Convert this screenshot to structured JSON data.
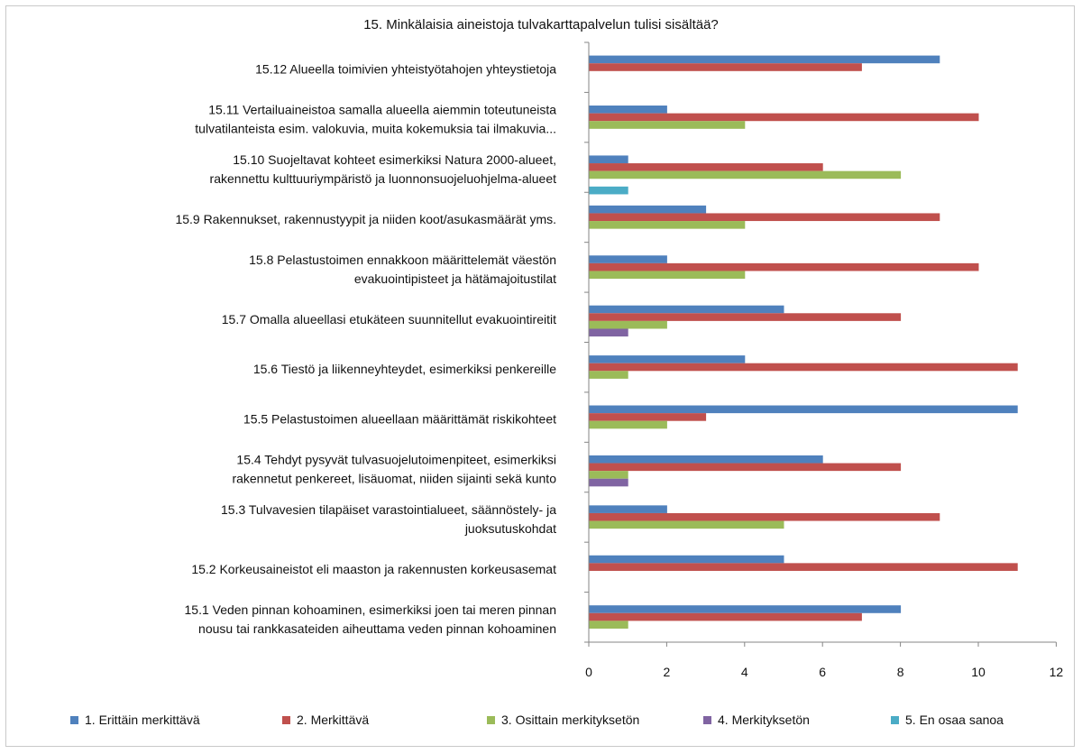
{
  "chart_data": {
    "type": "bar",
    "orientation": "horizontal",
    "title": "15. Minkälaisia aineistoja tulvakarttapalvelun tulisi sisältää?",
    "xlim": [
      0,
      12
    ],
    "x_ticks": [
      "0",
      "2",
      "4",
      "6",
      "8",
      "10",
      "12"
    ],
    "grid": false,
    "legend_position": "bottom",
    "categories": [
      [
        "15.12 Alueella toimivien yhteistyötahojen yhteystietoja"
      ],
      [
        "15.11 Vertailuaineistoa samalla alueella  aiemmin toteutuneista",
        "tulvatilanteista  esim. valokuvia, muita kokemuksia  tai ilmakuvia..."
      ],
      [
        "15.10 Suojeltavat kohteet esimerkiksi Natura 2000-alueet,",
        "rakennettu kulttuuriympäristö ja  luonnonsuojeluohjelma-alueet"
      ],
      [
        "15.9 Rakennukset, rakennustyypit ja niiden koot/asukasmäärät yms."
      ],
      [
        "15.8 Pelastustoimen ennakkoon  määrittelemät väestön",
        "evakuointipisteet ja hätämajoitustilat"
      ],
      [
        "15.7 Omalla alueellasi etukäteen suunnitellut evakuointireitit"
      ],
      [
        "15.6  Tiestö ja liikenneyhteydet,  esimerkiksi penkereille"
      ],
      [
        "15.5 Pelastustoimen alueellaan määrittämät riskikohteet"
      ],
      [
        "15.4 Tehdyt pysyvät tulvasuojelutoimenpiteet,  esimerkiksi",
        "rakennetut penkereet, lisäuomat,  niiden sijainti sekä kunto"
      ],
      [
        "15.3 Tulvavesien tilapäiset varastointialueet,  säännöstely- ja",
        "juoksutuskohdat"
      ],
      [
        "15.2 Korkeusaineistot eli maaston  ja rakennusten korkeusasemat"
      ],
      [
        "15.1 Veden pinnan kohoaminen, esimerkiksi joen tai meren pinnan",
        "nousu tai rankkasateiden aiheuttama veden  pinnan kohoaminen"
      ]
    ],
    "series": [
      {
        "name": "1. Erittäin merkittävä",
        "color": "#4f81bd",
        "values": [
          9,
          2,
          1,
          3,
          2,
          5,
          4,
          11,
          6,
          2,
          5,
          8
        ]
      },
      {
        "name": "2. Merkittävä",
        "color": "#c0504d",
        "values": [
          7,
          10,
          6,
          9,
          10,
          8,
          11,
          3,
          8,
          9,
          11,
          7
        ]
      },
      {
        "name": "3. Osittain merkityksetön",
        "color": "#9bbb59",
        "values": [
          0,
          4,
          8,
          4,
          4,
          2,
          1,
          2,
          1,
          5,
          0,
          1
        ]
      },
      {
        "name": "4. Merkityksetön",
        "color": "#8064a2",
        "values": [
          0,
          0,
          0,
          0,
          0,
          1,
          0,
          0,
          1,
          0,
          0,
          0
        ]
      },
      {
        "name": "5. En osaa sanoa",
        "color": "#4bacc6",
        "values": [
          0,
          0,
          1,
          0,
          0,
          0,
          0,
          0,
          0,
          0,
          0,
          0
        ]
      }
    ]
  }
}
